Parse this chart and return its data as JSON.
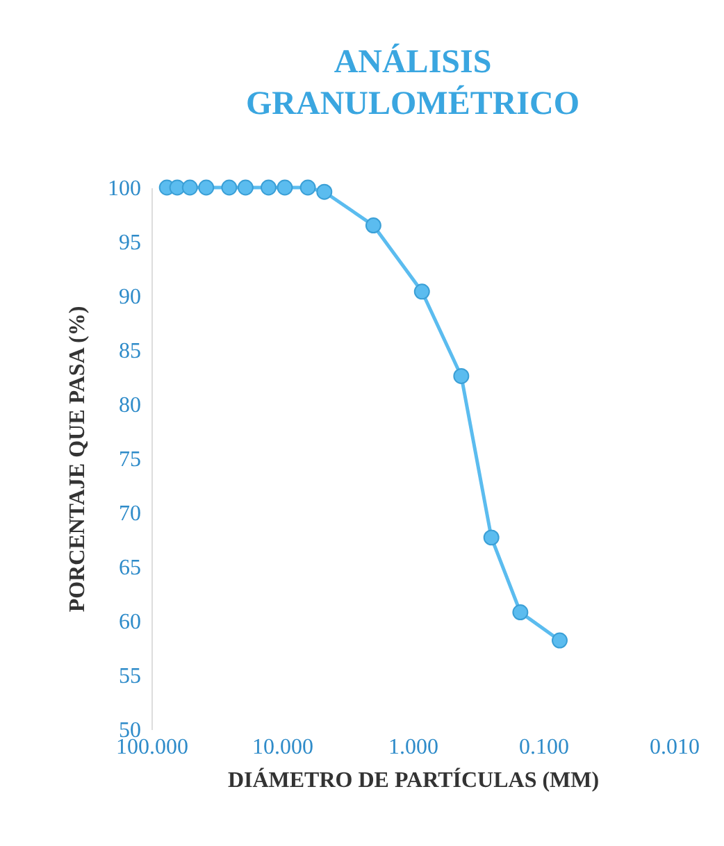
{
  "chart_data": {
    "type": "line",
    "title": "ANÁLISIS GRANULOMÉTRICO",
    "xlabel": "DIÁMETRO DE PARTÍCULAS (MM)",
    "ylabel": "PORCENTAJE QUE PASA (%)",
    "x": [
      76.2,
      63.5,
      50.8,
      38.1,
      25.4,
      19.05,
      12.7,
      9.525,
      6.35,
      4.75,
      2.0,
      0.85,
      0.425,
      0.25,
      0.15,
      0.075
    ],
    "series": [
      {
        "color": "#5bbcef",
        "values": [
          100,
          100,
          100,
          100,
          100,
          100,
          100,
          100,
          100,
          99.6,
          96.5,
          90.4,
          82.6,
          67.7,
          60.8,
          58.2
        ]
      }
    ],
    "log": "x",
    "xlim": [
      100,
      0.01
    ],
    "xticks": [
      {
        "value": 100,
        "label": "100.000"
      },
      {
        "value": 10,
        "label": "10.000"
      },
      {
        "value": 1,
        "label": "1.000"
      },
      {
        "value": 0.1,
        "label": "0.100"
      },
      {
        "value": 0.01,
        "label": "0.010"
      }
    ],
    "ylim": [
      50,
      100
    ],
    "yticks": [
      50,
      55,
      60,
      65,
      70,
      75,
      80,
      85,
      90,
      95,
      100
    ],
    "marker": "circle",
    "line_style": "solid"
  }
}
